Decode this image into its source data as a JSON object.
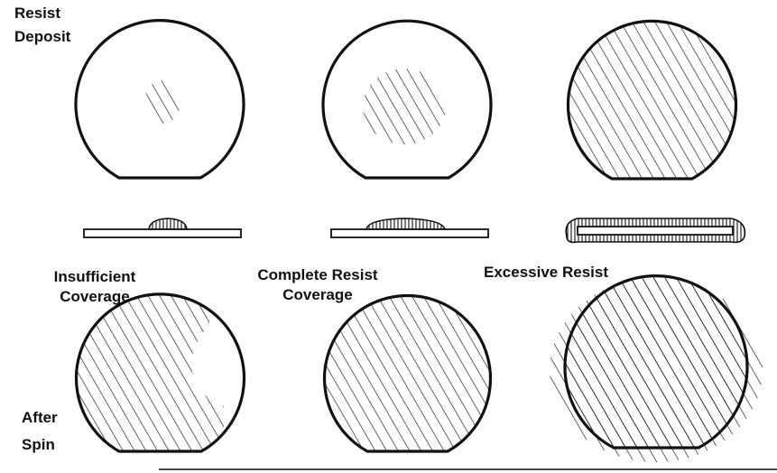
{
  "row_labels": {
    "top": [
      "Resist",
      "Deposit"
    ],
    "bottom": [
      "After",
      "Spin"
    ]
  },
  "columns": [
    {
      "title": [
        "Insufficient",
        "Coverage"
      ],
      "deposit_amount": "small"
    },
    {
      "title": [
        "Complete Resist",
        "Coverage"
      ],
      "deposit_amount": "medium"
    },
    {
      "title": [
        "Excessive Resist"
      ],
      "deposit_amount": "full"
    }
  ],
  "colors": {
    "ink": "#111111",
    "paper": "#ffffff"
  }
}
